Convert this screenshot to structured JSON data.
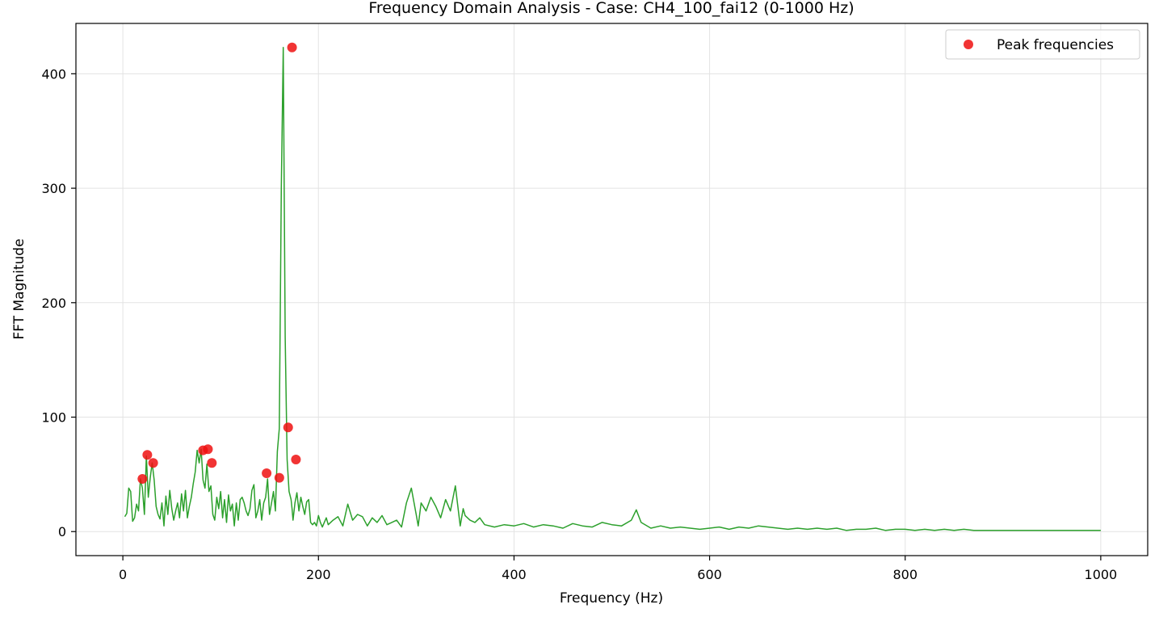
{
  "chart_data": {
    "type": "line",
    "title": "Frequency Domain Analysis - Case: CH4_100_fai12 (0-1000 Hz)",
    "xlabel": "Frequency (Hz)",
    "ylabel": "FFT Magnitude",
    "xlim": [
      -48,
      1048
    ],
    "ylim": [
      -21,
      444
    ],
    "xticks": [
      0,
      200,
      400,
      600,
      800,
      1000
    ],
    "yticks": [
      0,
      100,
      200,
      300,
      400
    ],
    "grid": true,
    "legend_position": "top-right",
    "colors": {
      "spectrum": "#2ca02c",
      "peaks": "#ee1111",
      "grid": "#e3e3e3"
    },
    "series": [
      {
        "kind": "line",
        "x": [
          2,
          4,
          6,
          8,
          10,
          12,
          14,
          16,
          18,
          20,
          22,
          24,
          26,
          28,
          30,
          32,
          34,
          36,
          38,
          40,
          42,
          44,
          46,
          48,
          50,
          52,
          54,
          56,
          58,
          60,
          62,
          64,
          66,
          68,
          70,
          72,
          74,
          76,
          78,
          80,
          82,
          84,
          86,
          88,
          90,
          92,
          94,
          96,
          98,
          100,
          102,
          104,
          106,
          108,
          110,
          112,
          114,
          116,
          118,
          120,
          122,
          124,
          126,
          128,
          130,
          132,
          134,
          136,
          138,
          140,
          142,
          144,
          146,
          148,
          150,
          152,
          154,
          156,
          158,
          160,
          162,
          164,
          166,
          168,
          170,
          172,
          173,
          174,
          176,
          178,
          180,
          182,
          184,
          186,
          188,
          190,
          192,
          194,
          196,
          198,
          200,
          202,
          204,
          206,
          208,
          210,
          215,
          220,
          225,
          230,
          235,
          240,
          245,
          250,
          255,
          260,
          265,
          270,
          275,
          280,
          285,
          290,
          295,
          300,
          302,
          305,
          310,
          315,
          320,
          325,
          330,
          335,
          340,
          345,
          348,
          350,
          355,
          360,
          365,
          370,
          380,
          390,
          400,
          410,
          420,
          430,
          440,
          450,
          460,
          470,
          480,
          490,
          500,
          510,
          520,
          525,
          530,
          540,
          550,
          560,
          570,
          580,
          590,
          600,
          610,
          620,
          630,
          640,
          650,
          660,
          670,
          680,
          690,
          700,
          710,
          720,
          730,
          740,
          750,
          760,
          770,
          780,
          790,
          800,
          810,
          820,
          830,
          840,
          850,
          860,
          870,
          880,
          890,
          900,
          910,
          920,
          930,
          940,
          950,
          960,
          970,
          980,
          990,
          1000
        ],
        "y": [
          13,
          16,
          38,
          35,
          9,
          12,
          24,
          18,
          46,
          38,
          15,
          66,
          30,
          47,
          60,
          45,
          22,
          15,
          11,
          25,
          5,
          31,
          15,
          36,
          20,
          10,
          18,
          25,
          12,
          33,
          18,
          36,
          12,
          22,
          30,
          42,
          52,
          71,
          60,
          72,
          45,
          38,
          59,
          35,
          40,
          15,
          10,
          30,
          20,
          35,
          12,
          28,
          8,
          32,
          18,
          24,
          5,
          25,
          10,
          28,
          30,
          25,
          18,
          14,
          20,
          36,
          41,
          12,
          18,
          28,
          10,
          25,
          30,
          46,
          15,
          25,
          35,
          18,
          70,
          90,
          300,
          423,
          170,
          63,
          35,
          28,
          20,
          10,
          25,
          34,
          18,
          30,
          22,
          15,
          26,
          28,
          8,
          6,
          8,
          5,
          14,
          8,
          4,
          8,
          12,
          6,
          10,
          13,
          5,
          24,
          10,
          15,
          13,
          5,
          12,
          8,
          14,
          6,
          8,
          10,
          4,
          25,
          38,
          15,
          5,
          25,
          18,
          30,
          22,
          12,
          28,
          18,
          40,
          5,
          20,
          14,
          10,
          8,
          12,
          6,
          4,
          6,
          5,
          7,
          4,
          6,
          5,
          3,
          7,
          5,
          4,
          8,
          6,
          5,
          10,
          19,
          8,
          3,
          5,
          3,
          4,
          3,
          2,
          3,
          4,
          2,
          4,
          3,
          5,
          4,
          3,
          2,
          3,
          2,
          3,
          2,
          3,
          1,
          2,
          2,
          3,
          1,
          2,
          2,
          1,
          2,
          1,
          2,
          1,
          2,
          1,
          1,
          1,
          1,
          1,
          1,
          1,
          1,
          1,
          1,
          1,
          1,
          1,
          1
        ]
      },
      {
        "kind": "markers",
        "name": "Peak frequencies",
        "x": [
          20,
          25,
          31,
          82,
          87,
          91,
          147,
          160,
          169,
          173,
          177
        ],
        "y": [
          46,
          67,
          60,
          71,
          72,
          60,
          51,
          47,
          91,
          423,
          63
        ]
      }
    ]
  }
}
